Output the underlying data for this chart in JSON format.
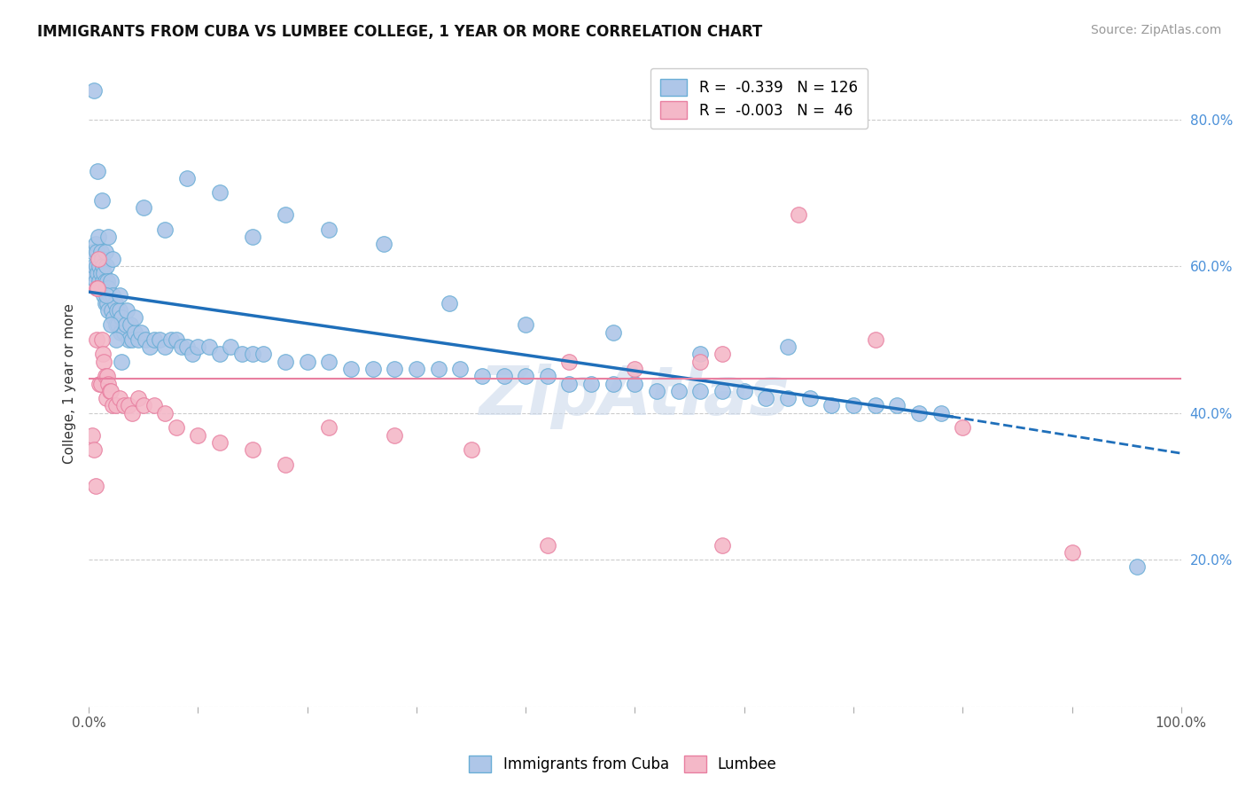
{
  "title": "IMMIGRANTS FROM CUBA VS LUMBEE COLLEGE, 1 YEAR OR MORE CORRELATION CHART",
  "source": "Source: ZipAtlas.com",
  "ylabel": "College, 1 year or more",
  "xlim": [
    0.0,
    1.0
  ],
  "ylim": [
    0.0,
    0.88
  ],
  "x_ticks": [
    0.0,
    0.1,
    0.2,
    0.3,
    0.4,
    0.5,
    0.6,
    0.7,
    0.8,
    0.9,
    1.0
  ],
  "x_tick_labels": [
    "0.0%",
    "",
    "",
    "",
    "",
    "",
    "",
    "",
    "",
    "",
    "100.0%"
  ],
  "y_ticks": [
    0.0,
    0.2,
    0.4,
    0.6,
    0.8
  ],
  "y_tick_labels_right": [
    "",
    "20.0%",
    "40.0%",
    "60.0%",
    "80.0%"
  ],
  "legend_entries": [
    {
      "label": "R =  -0.339   N = 126",
      "color": "#aec6e8",
      "edge": "#6aaed6"
    },
    {
      "label": "R =  -0.003   N =  46",
      "color": "#f4b8c8",
      "edge": "#e87fa0"
    }
  ],
  "legend_labels": [
    "Immigrants from Cuba",
    "Lumbee"
  ],
  "blue_color": "#aec6e8",
  "blue_edge": "#6aaed6",
  "pink_color": "#f4b8c8",
  "pink_edge": "#e87fa0",
  "trend_blue_color": "#1f6fba",
  "trend_pink_color": "#e87fa0",
  "trend_blue_start_y": 0.565,
  "trend_blue_end_x": 0.79,
  "trend_blue_end_y": 0.395,
  "trend_blue_dash_end_x": 1.0,
  "trend_blue_dash_end_y": 0.345,
  "trend_pink_y": 0.447,
  "watermark_text": "ZipAtlas",
  "watermark_color": "#ccdaec",
  "blue_x": [
    0.003,
    0.004,
    0.005,
    0.006,
    0.006,
    0.007,
    0.007,
    0.008,
    0.009,
    0.009,
    0.01,
    0.01,
    0.011,
    0.011,
    0.012,
    0.012,
    0.013,
    0.013,
    0.014,
    0.014,
    0.015,
    0.015,
    0.016,
    0.016,
    0.017,
    0.017,
    0.018,
    0.018,
    0.019,
    0.02,
    0.021,
    0.022,
    0.023,
    0.024,
    0.025,
    0.026,
    0.027,
    0.028,
    0.029,
    0.03,
    0.032,
    0.034,
    0.036,
    0.038,
    0.04,
    0.042,
    0.045,
    0.048,
    0.052,
    0.056,
    0.06,
    0.065,
    0.07,
    0.075,
    0.08,
    0.085,
    0.09,
    0.095,
    0.1,
    0.11,
    0.12,
    0.13,
    0.14,
    0.15,
    0.16,
    0.18,
    0.2,
    0.22,
    0.24,
    0.26,
    0.28,
    0.3,
    0.32,
    0.34,
    0.36,
    0.38,
    0.4,
    0.42,
    0.44,
    0.46,
    0.48,
    0.5,
    0.52,
    0.54,
    0.56,
    0.58,
    0.6,
    0.62,
    0.64,
    0.66,
    0.68,
    0.7,
    0.72,
    0.74,
    0.76,
    0.78,
    0.05,
    0.07,
    0.09,
    0.12,
    0.15,
    0.18,
    0.22,
    0.27,
    0.33,
    0.4,
    0.48,
    0.56,
    0.64,
    0.005,
    0.008,
    0.012,
    0.016,
    0.02,
    0.025,
    0.03,
    0.015,
    0.018,
    0.022,
    0.028,
    0.035,
    0.042,
    0.96
  ],
  "blue_y": [
    0.59,
    0.62,
    0.6,
    0.58,
    0.63,
    0.6,
    0.62,
    0.59,
    0.61,
    0.64,
    0.58,
    0.6,
    0.59,
    0.62,
    0.57,
    0.61,
    0.58,
    0.6,
    0.56,
    0.59,
    0.55,
    0.58,
    0.57,
    0.6,
    0.55,
    0.58,
    0.54,
    0.57,
    0.56,
    0.58,
    0.54,
    0.56,
    0.53,
    0.55,
    0.52,
    0.54,
    0.52,
    0.54,
    0.51,
    0.53,
    0.51,
    0.52,
    0.5,
    0.52,
    0.5,
    0.51,
    0.5,
    0.51,
    0.5,
    0.49,
    0.5,
    0.5,
    0.49,
    0.5,
    0.5,
    0.49,
    0.49,
    0.48,
    0.49,
    0.49,
    0.48,
    0.49,
    0.48,
    0.48,
    0.48,
    0.47,
    0.47,
    0.47,
    0.46,
    0.46,
    0.46,
    0.46,
    0.46,
    0.46,
    0.45,
    0.45,
    0.45,
    0.45,
    0.44,
    0.44,
    0.44,
    0.44,
    0.43,
    0.43,
    0.43,
    0.43,
    0.43,
    0.42,
    0.42,
    0.42,
    0.41,
    0.41,
    0.41,
    0.41,
    0.4,
    0.4,
    0.68,
    0.65,
    0.72,
    0.7,
    0.64,
    0.67,
    0.65,
    0.63,
    0.55,
    0.52,
    0.51,
    0.48,
    0.49,
    0.84,
    0.73,
    0.69,
    0.56,
    0.52,
    0.5,
    0.47,
    0.62,
    0.64,
    0.61,
    0.56,
    0.54,
    0.53,
    0.19
  ],
  "pink_x": [
    0.003,
    0.005,
    0.006,
    0.007,
    0.007,
    0.008,
    0.009,
    0.01,
    0.011,
    0.012,
    0.013,
    0.014,
    0.015,
    0.016,
    0.017,
    0.018,
    0.019,
    0.02,
    0.022,
    0.025,
    0.028,
    0.032,
    0.036,
    0.04,
    0.045,
    0.05,
    0.06,
    0.07,
    0.08,
    0.1,
    0.12,
    0.15,
    0.18,
    0.22,
    0.28,
    0.35,
    0.42,
    0.5,
    0.58,
    0.65,
    0.72,
    0.8,
    0.9,
    0.56,
    0.44,
    0.58
  ],
  "pink_y": [
    0.37,
    0.35,
    0.3,
    0.57,
    0.5,
    0.57,
    0.61,
    0.44,
    0.44,
    0.5,
    0.48,
    0.47,
    0.45,
    0.42,
    0.45,
    0.44,
    0.43,
    0.43,
    0.41,
    0.41,
    0.42,
    0.41,
    0.41,
    0.4,
    0.42,
    0.41,
    0.41,
    0.4,
    0.38,
    0.37,
    0.36,
    0.35,
    0.33,
    0.38,
    0.37,
    0.35,
    0.22,
    0.46,
    0.48,
    0.67,
    0.5,
    0.38,
    0.21,
    0.47,
    0.47,
    0.22
  ]
}
